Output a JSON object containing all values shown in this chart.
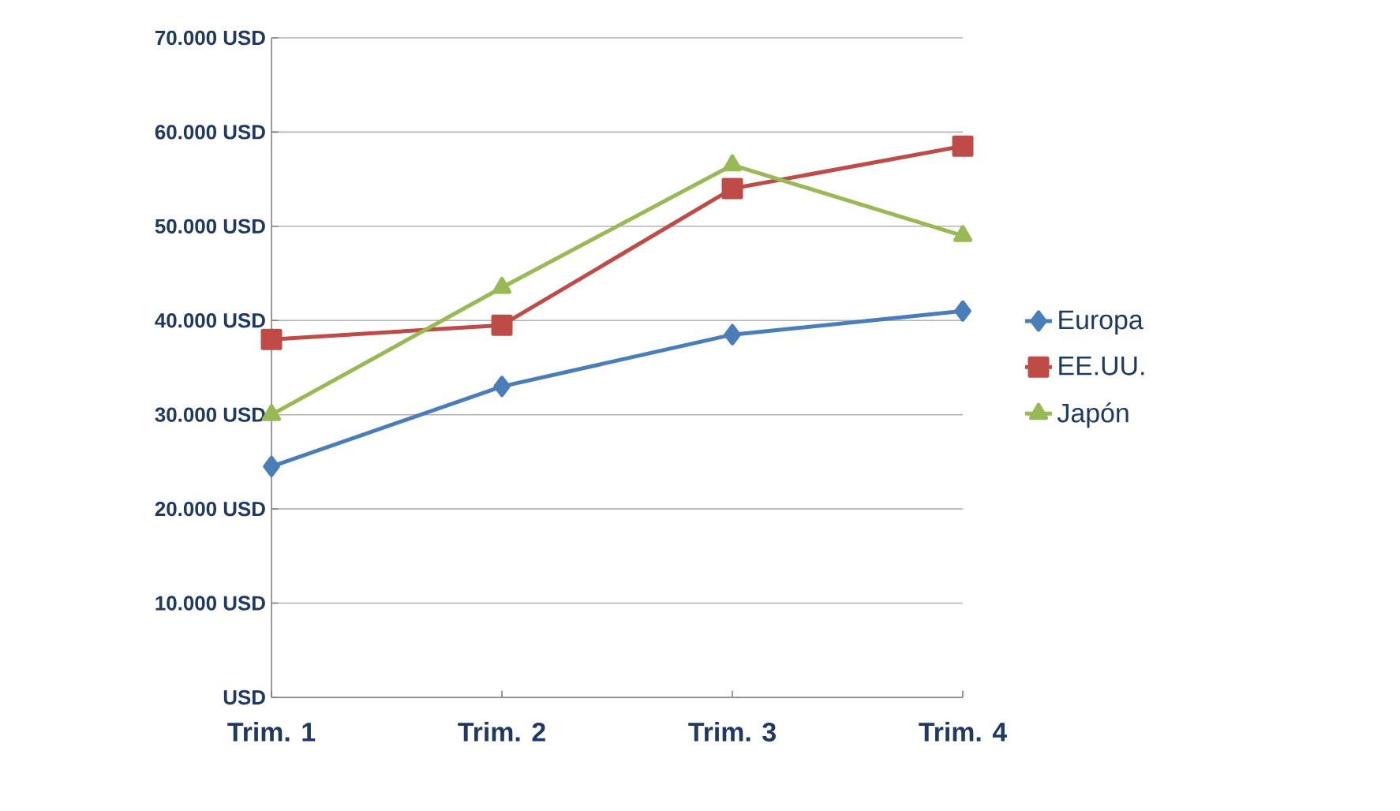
{
  "chart_data": {
    "type": "line",
    "categories": [
      "Trim. 1",
      "Trim. 2",
      "Trim. 3",
      "Trim. 4"
    ],
    "series": [
      {
        "name": "Europa",
        "color": "#4a7ebb",
        "marker": "diamond",
        "values": [
          24500,
          33000,
          38500,
          41000
        ]
      },
      {
        "name": "EE.UU.",
        "color": "#be4b48",
        "marker": "square",
        "values": [
          38000,
          39500,
          54000,
          58500
        ]
      },
      {
        "name": "Japón",
        "color": "#98b954",
        "marker": "triangle",
        "values": [
          30000,
          43500,
          56500,
          49000
        ]
      }
    ],
    "ylim": [
      0,
      70000
    ],
    "yticks": [
      {
        "value": 0,
        "label": "USD"
      },
      {
        "value": 10000,
        "label": "10.000 USD"
      },
      {
        "value": 20000,
        "label": "20.000 USD"
      },
      {
        "value": 30000,
        "label": "30.000 USD"
      },
      {
        "value": 40000,
        "label": "40.000 USD"
      },
      {
        "value": 50000,
        "label": "50.000 USD"
      },
      {
        "value": 60000,
        "label": "60.000 USD"
      },
      {
        "value": 70000,
        "label": "70.000 USD"
      }
    ],
    "grid": "y",
    "legend": "right",
    "line_style": "solid"
  }
}
